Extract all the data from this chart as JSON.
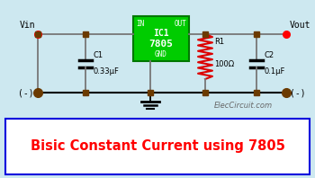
{
  "bg_color": "#cde8f0",
  "title_text": "Bisic Constant Current using 7805",
  "title_color": "#ff0000",
  "title_border_color": "#0000dd",
  "watermark": "ElecCircuit.com",
  "ic_color": "#00cc00",
  "ic_label1": "IC1",
  "ic_label2": "7805",
  "ic_border_color": "#007700",
  "wire_color": "#777777",
  "dot_color": "#6b3a00",
  "red_dot_color": "#ff0000",
  "resistor_color": "#dd0000",
  "label_vin": "Vin",
  "label_vout": "Vout",
  "label_in": "IN",
  "label_out": "OUT",
  "label_gnd": "GND",
  "label_r1": "R1",
  "label_r1_val": "100Ω",
  "label_c1": "C1",
  "label_c1_val": "0.33μF",
  "label_c2": "C2",
  "label_c2_val": "0.1μF",
  "label_minus": "(-)"
}
